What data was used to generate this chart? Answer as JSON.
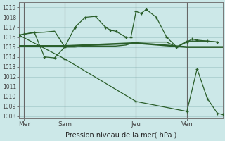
{
  "background_color": "#cce8e8",
  "grid_color": "#aacece",
  "line_color": "#2a5e2a",
  "ylabel_ticks": [
    1008,
    1009,
    1010,
    1011,
    1012,
    1013,
    1014,
    1015,
    1016,
    1017,
    1018,
    1019
  ],
  "ylim": [
    1007.8,
    1019.5
  ],
  "xlim": [
    0,
    20
  ],
  "xlabel": "Pression niveau de la mer( hPa )",
  "day_labels": [
    "Mer",
    "Sam",
    "Jeu",
    "Ven"
  ],
  "day_positions": [
    0.5,
    4.5,
    11.5,
    16.5
  ],
  "vline_positions": [
    0.5,
    4.5,
    11.5,
    16.5
  ],
  "series1_x": [
    0,
    0.5,
    1.5,
    2.5,
    3.5,
    4.5,
    5.5,
    6.5,
    7.5,
    8.5,
    9.0,
    9.5,
    10.5,
    11.0,
    11.5,
    12.0,
    12.5,
    13.5,
    14.5,
    15.5,
    16.5,
    17.0,
    17.5,
    18.5,
    19.5
  ],
  "series1_y": [
    1016.2,
    1016.3,
    1016.5,
    1014.0,
    1013.9,
    1015.0,
    1017.0,
    1018.0,
    1018.1,
    1017.0,
    1016.7,
    1016.6,
    1016.0,
    1016.0,
    1018.6,
    1018.4,
    1018.8,
    1018.0,
    1016.0,
    1015.0,
    1015.5,
    1015.8,
    1015.7,
    1015.6,
    1015.5
  ],
  "series2_x": [
    0,
    4.5,
    11.5,
    16.5,
    20
  ],
  "series2_y": [
    1015.1,
    1015.1,
    1015.4,
    1015.0,
    1015.0
  ],
  "series3_x": [
    0,
    4.5,
    11.5,
    16.5,
    17.5,
    18.5,
    19.5,
    20
  ],
  "series3_y": [
    1016.2,
    1013.8,
    1009.5,
    1008.5,
    1012.8,
    1009.8,
    1008.3,
    1008.2
  ],
  "series4_x": [
    0,
    0.5,
    1.5,
    2.5,
    3.5,
    4.5,
    5.5,
    6.5,
    7.5,
    8.5,
    9.5,
    10.5,
    11.5,
    12.5,
    13.5,
    14.5,
    15.5,
    16.5,
    17.0,
    17.5,
    18.5,
    19.5
  ],
  "series4_y": [
    1016.2,
    1016.3,
    1016.45,
    1016.5,
    1016.6,
    1015.0,
    1015.0,
    1015.1,
    1015.1,
    1015.1,
    1015.1,
    1015.2,
    1015.5,
    1015.5,
    1015.5,
    1015.5,
    1015.0,
    1015.6,
    1015.6,
    1015.6,
    1015.6,
    1015.5
  ]
}
